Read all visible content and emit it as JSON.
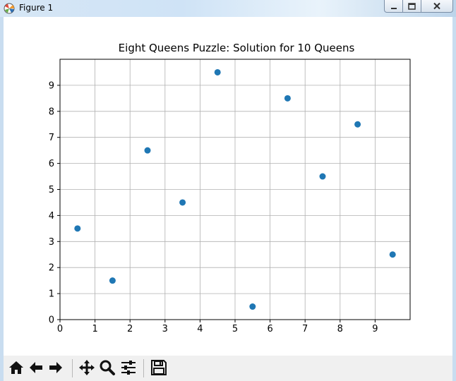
{
  "window": {
    "title": "Figure 1",
    "icon": "matplotlib-icon",
    "controls": [
      "minimize-icon",
      "maximize-icon",
      "close-icon"
    ]
  },
  "toolbar": {
    "buttons": [
      "home-icon",
      "back-arrow-icon",
      "forward-arrow-icon",
      "pan-icon",
      "zoom-icon",
      "configure-subplots-icon",
      "save-icon"
    ]
  },
  "chart_data": {
    "type": "scatter",
    "title": "Eight Queens Puzzle: Solution for 10 Queens",
    "xlabel": "",
    "ylabel": "",
    "xlim": [
      0,
      10
    ],
    "ylim": [
      0,
      10
    ],
    "xticks": [
      0,
      1,
      2,
      3,
      4,
      5,
      6,
      7,
      8,
      9
    ],
    "yticks": [
      0,
      1,
      2,
      3,
      4,
      5,
      6,
      7,
      8,
      9
    ],
    "grid": true,
    "marker_color": "#1f77b4",
    "x": [
      0.5,
      1.5,
      2.5,
      3.5,
      4.5,
      5.5,
      6.5,
      7.5,
      8.5,
      9.5
    ],
    "y": [
      3.5,
      1.5,
      6.5,
      4.5,
      9.5,
      0.5,
      8.5,
      5.5,
      7.5,
      2.5
    ]
  }
}
